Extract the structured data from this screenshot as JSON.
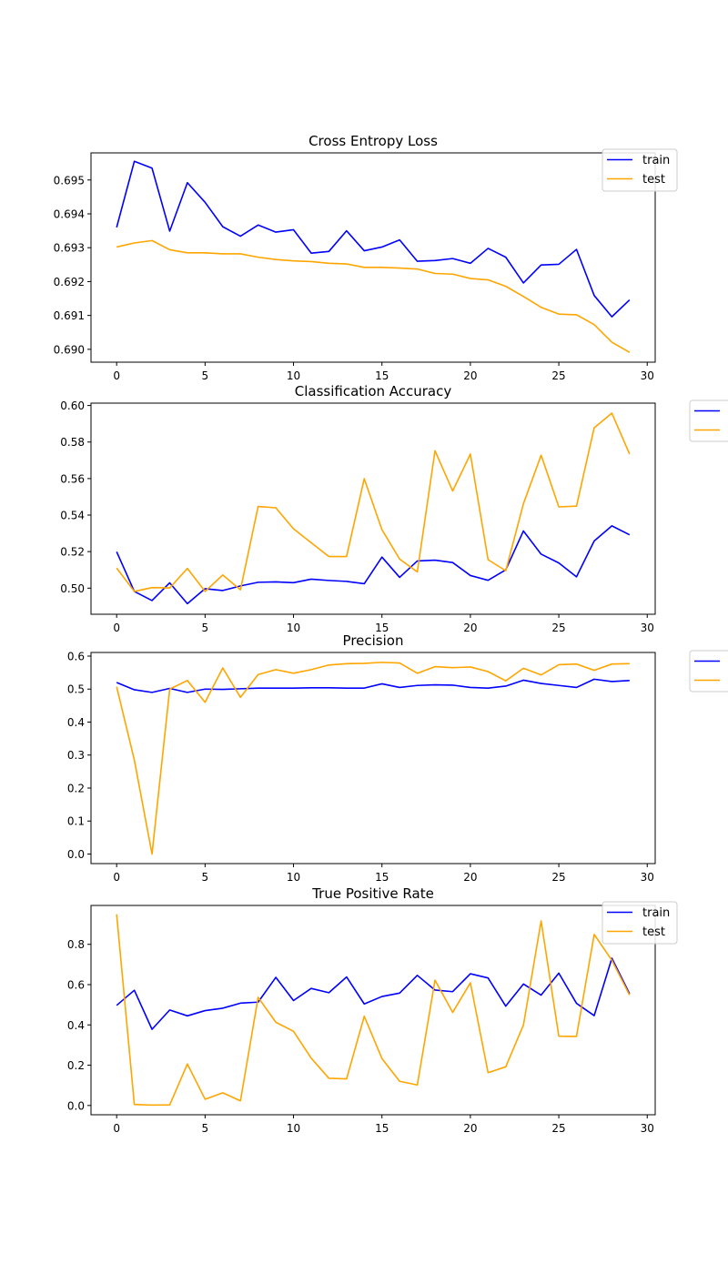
{
  "colors": {
    "train": "#0000ff",
    "test": "#ffa500",
    "axes": "#000000",
    "background": "#ffffff",
    "legend_border": "#cccccc"
  },
  "chart_data": [
    {
      "type": "line",
      "title": "Cross Entropy Loss",
      "xlabel": "",
      "ylabel": "",
      "xlim": [
        -1.45,
        30.45
      ],
      "ylim": [
        0.68962,
        0.6958
      ],
      "xticks": [
        0,
        5,
        10,
        15,
        20,
        25,
        30
      ],
      "yticks": [
        0.69,
        0.691,
        0.692,
        0.693,
        0.694,
        0.695
      ],
      "ytick_labels": [
        "0.690",
        "0.691",
        "0.692",
        "0.693",
        "0.694",
        "0.695"
      ],
      "grid": false,
      "legend": {
        "placement": "top-right, partly outside",
        "show_labels": true
      },
      "x": [
        0,
        1,
        2,
        3,
        4,
        5,
        6,
        7,
        8,
        9,
        10,
        11,
        12,
        13,
        14,
        15,
        16,
        17,
        18,
        19,
        20,
        21,
        22,
        23,
        24,
        25,
        26,
        27,
        28,
        29
      ],
      "series": [
        {
          "name": "train",
          "color": "#0000ff",
          "values": [
            0.6936,
            0.69555,
            0.69535,
            0.69349,
            0.69492,
            0.69434,
            0.69362,
            0.69334,
            0.69367,
            0.69346,
            0.69353,
            0.69284,
            0.69289,
            0.6935,
            0.69291,
            0.69302,
            0.69323,
            0.6926,
            0.69262,
            0.69268,
            0.69254,
            0.69298,
            0.69272,
            0.69196,
            0.69249,
            0.69251,
            0.69295,
            0.69159,
            0.69096,
            0.69146
          ]
        },
        {
          "name": "test",
          "color": "#ffa500",
          "values": [
            0.69302,
            0.69314,
            0.69321,
            0.69294,
            0.69285,
            0.69285,
            0.69282,
            0.69282,
            0.69272,
            0.69265,
            0.69261,
            0.69259,
            0.69254,
            0.69252,
            0.69242,
            0.69242,
            0.6924,
            0.69237,
            0.69224,
            0.69222,
            0.69209,
            0.69205,
            0.69186,
            0.69156,
            0.69124,
            0.69104,
            0.69102,
            0.69073,
            0.69021,
            0.68991
          ]
        }
      ]
    },
    {
      "type": "line",
      "title": "Classification Accuracy",
      "xlabel": "",
      "ylabel": "",
      "xlim": [
        -1.45,
        30.45
      ],
      "ylim": [
        0.4857,
        0.6013
      ],
      "xticks": [
        0,
        5,
        10,
        15,
        20,
        25,
        30
      ],
      "yticks": [
        0.5,
        0.52,
        0.54,
        0.56,
        0.58,
        0.6
      ],
      "ytick_labels": [
        "0.50",
        "0.52",
        "0.54",
        "0.56",
        "0.58",
        "0.60"
      ],
      "grid": false,
      "legend": {
        "placement": "right, outside (clipped)",
        "show_labels": false
      },
      "x": [
        0,
        1,
        2,
        3,
        4,
        5,
        6,
        7,
        8,
        9,
        10,
        11,
        12,
        13,
        14,
        15,
        16,
        17,
        18,
        19,
        20,
        21,
        22,
        23,
        24,
        25,
        26,
        27,
        28,
        29
      ],
      "series": [
        {
          "name": "train",
          "color": "#0000ff",
          "values": [
            0.5199,
            0.4982,
            0.4932,
            0.5029,
            0.4915,
            0.4997,
            0.4987,
            0.5012,
            0.5032,
            0.5034,
            0.503,
            0.5049,
            0.5042,
            0.5037,
            0.5024,
            0.517,
            0.5059,
            0.5149,
            0.5153,
            0.514,
            0.5069,
            0.5043,
            0.51,
            0.5313,
            0.5186,
            0.5138,
            0.5062,
            0.5258,
            0.5341,
            0.5292
          ]
        },
        {
          "name": "test",
          "color": "#ffa500",
          "values": [
            0.511,
            0.4982,
            0.5003,
            0.5001,
            0.5108,
            0.4982,
            0.5072,
            0.4991,
            0.5447,
            0.544,
            0.5325,
            0.5249,
            0.5173,
            0.5173,
            0.5599,
            0.532,
            0.5159,
            0.5089,
            0.5752,
            0.5532,
            0.5734,
            0.5156,
            0.5095,
            0.5462,
            0.5728,
            0.5445,
            0.5449,
            0.5878,
            0.5958,
            0.5734
          ]
        }
      ]
    },
    {
      "type": "line",
      "title": "Precision",
      "xlabel": "",
      "ylabel": "",
      "xlim": [
        -1.45,
        30.45
      ],
      "ylim": [
        -0.029,
        0.611
      ],
      "xticks": [
        0,
        5,
        10,
        15,
        20,
        25,
        30
      ],
      "yticks": [
        0.0,
        0.1,
        0.2,
        0.3,
        0.4,
        0.5,
        0.6
      ],
      "ytick_labels": [
        "0.0",
        "0.1",
        "0.2",
        "0.3",
        "0.4",
        "0.5",
        "0.6"
      ],
      "grid": false,
      "legend": {
        "placement": "right, outside (clipped)",
        "show_labels": false
      },
      "x": [
        0,
        1,
        2,
        3,
        4,
        5,
        6,
        7,
        8,
        9,
        10,
        11,
        12,
        13,
        14,
        15,
        16,
        17,
        18,
        19,
        20,
        21,
        22,
        23,
        24,
        25,
        26,
        27,
        28,
        29
      ],
      "series": [
        {
          "name": "train",
          "color": "#0000ff",
          "values": [
            0.52,
            0.498,
            0.49,
            0.502,
            0.49,
            0.5,
            0.499,
            0.501,
            0.503,
            0.503,
            0.503,
            0.504,
            0.504,
            0.503,
            0.503,
            0.516,
            0.505,
            0.511,
            0.513,
            0.512,
            0.505,
            0.503,
            0.509,
            0.527,
            0.517,
            0.511,
            0.505,
            0.53,
            0.523,
            0.526
          ]
        },
        {
          "name": "test",
          "color": "#ffa500",
          "values": [
            0.507,
            0.285,
            0.0,
            0.5,
            0.526,
            0.46,
            0.564,
            0.475,
            0.544,
            0.559,
            0.548,
            0.559,
            0.573,
            0.577,
            0.578,
            0.581,
            0.579,
            0.548,
            0.568,
            0.565,
            0.567,
            0.553,
            0.525,
            0.563,
            0.543,
            0.574,
            0.576,
            0.557,
            0.576,
            0.577
          ]
        }
      ]
    },
    {
      "type": "line",
      "title": "True Positive Rate",
      "xlabel": "",
      "ylabel": "",
      "xlim": [
        -1.45,
        30.45
      ],
      "ylim": [
        -0.046,
        0.993
      ],
      "xticks": [
        0,
        5,
        10,
        15,
        20,
        25,
        30
      ],
      "yticks": [
        0.0,
        0.2,
        0.4,
        0.6,
        0.8
      ],
      "ytick_labels": [
        "0.0",
        "0.2",
        "0.4",
        "0.6",
        "0.8"
      ],
      "grid": false,
      "legend": {
        "placement": "top-right, partly outside",
        "show_labels": true
      },
      "x": [
        0,
        1,
        2,
        3,
        4,
        5,
        6,
        7,
        8,
        9,
        10,
        11,
        12,
        13,
        14,
        15,
        16,
        17,
        18,
        19,
        20,
        21,
        22,
        23,
        24,
        25,
        26,
        27,
        28,
        29
      ],
      "series": [
        {
          "name": "train",
          "color": "#0000ff",
          "values": [
            0.497,
            0.572,
            0.378,
            0.474,
            0.445,
            0.471,
            0.483,
            0.508,
            0.513,
            0.636,
            0.521,
            0.581,
            0.56,
            0.638,
            0.504,
            0.541,
            0.558,
            0.646,
            0.573,
            0.565,
            0.654,
            0.633,
            0.493,
            0.603,
            0.548,
            0.657,
            0.507,
            0.446,
            0.731,
            0.555
          ]
        },
        {
          "name": "test",
          "color": "#ffa500",
          "values": [
            0.949,
            0.005,
            0.002,
            0.003,
            0.206,
            0.031,
            0.063,
            0.023,
            0.537,
            0.413,
            0.368,
            0.235,
            0.135,
            0.132,
            0.443,
            0.233,
            0.12,
            0.102,
            0.622,
            0.462,
            0.609,
            0.163,
            0.192,
            0.399,
            0.916,
            0.344,
            0.343,
            0.849,
            0.721,
            0.548
          ]
        }
      ]
    }
  ]
}
